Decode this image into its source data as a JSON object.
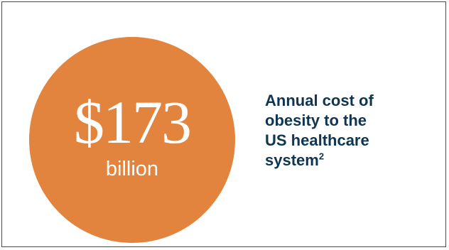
{
  "stat": {
    "amount": "$173",
    "unit": "billion"
  },
  "caption": {
    "lines": [
      "Annual cost of",
      "obesity to the",
      "US healthcare"
    ],
    "last_line": "system",
    "footnote": "2"
  },
  "colors": {
    "circle": "#e2843d",
    "caption_text": "#0f3550",
    "border": "#4a4a4a"
  }
}
